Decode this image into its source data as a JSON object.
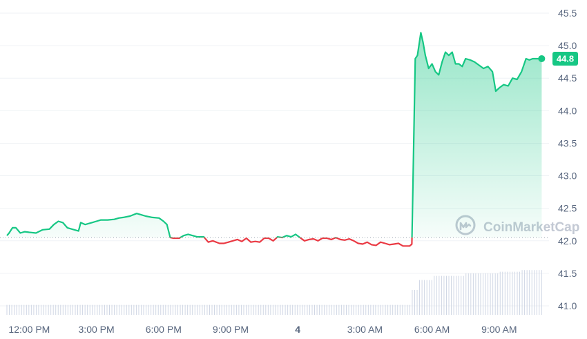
{
  "chart_data": {
    "type": "line",
    "watermark": "CoinMarketCap",
    "current_price_label": "44.8",
    "baseline": 42.05,
    "ylim": [
      40.95,
      45.7
    ],
    "y_ticks": [
      "41.0",
      "41.5",
      "42.0",
      "42.5",
      "43.0",
      "43.5",
      "44.0",
      "44.5",
      "45.0",
      "45.5"
    ],
    "x_ticks": [
      {
        "label": "12:00 PM",
        "t": 3
      },
      {
        "label": "3:00 PM",
        "t": 6
      },
      {
        "label": "6:00 PM",
        "t": 9
      },
      {
        "label": "9:00 PM",
        "t": 12
      },
      {
        "label": "4",
        "t": 15,
        "bold": true
      },
      {
        "label": "3:00 AM",
        "t": 18
      },
      {
        "label": "6:00 AM",
        "t": 21
      },
      {
        "label": "9:00 AM",
        "t": 24
      }
    ],
    "xlim": [
      2.0,
      26.5
    ],
    "colors": {
      "up": "#16c784",
      "down": "#ea3943",
      "grid": "#eff2f5",
      "volume": "#cfd6e4"
    },
    "series": [
      {
        "t": [
          2.0,
          2.1,
          2.25,
          2.4,
          2.6,
          2.8,
          3.0,
          3.3,
          3.6,
          3.9,
          4.1,
          4.3,
          4.5,
          4.7,
          4.9,
          5.2,
          5.3,
          5.5,
          5.8,
          6.0,
          6.2,
          6.5,
          6.8,
          7.0,
          7.2,
          7.5,
          7.8,
          8.0,
          8.2,
          8.5,
          8.8,
          9.0,
          9.15,
          9.3,
          9.45,
          9.7,
          9.9,
          10.1,
          10.3,
          10.5,
          10.8,
          11.0,
          11.2,
          11.5,
          11.7,
          11.9,
          12.1,
          12.3,
          12.5,
          12.7,
          12.9,
          13.1,
          13.3,
          13.5,
          13.7,
          13.9,
          14.1,
          14.3,
          14.5,
          14.7,
          14.9,
          15.1,
          15.3,
          15.5,
          15.7,
          15.9,
          16.1,
          16.3,
          16.5,
          16.7,
          16.9,
          17.1,
          17.3,
          17.5,
          17.7,
          17.9,
          18.1,
          18.3,
          18.5,
          18.7,
          18.9,
          19.1,
          19.3,
          19.5,
          19.7,
          20.0,
          20.1,
          20.25,
          20.35,
          20.5,
          20.6,
          20.7,
          20.85,
          21.0,
          21.15,
          21.3,
          21.45,
          21.6,
          21.75,
          21.9,
          22.05,
          22.2,
          22.35,
          22.5,
          22.7,
          22.9,
          23.1,
          23.3,
          23.5,
          23.7,
          23.85,
          24.0,
          24.2,
          24.4,
          24.6,
          24.8,
          25.0,
          25.2,
          25.35,
          25.5,
          25.7,
          25.9
        ],
        "values": [
          42.08,
          42.12,
          42.2,
          42.2,
          42.12,
          42.14,
          42.13,
          42.12,
          42.17,
          42.18,
          42.25,
          42.3,
          42.28,
          42.2,
          42.18,
          42.15,
          42.28,
          42.25,
          42.28,
          42.3,
          42.32,
          42.32,
          42.33,
          42.35,
          42.36,
          42.38,
          42.42,
          42.4,
          42.38,
          42.36,
          42.35,
          42.3,
          42.25,
          42.05,
          42.04,
          42.04,
          42.08,
          42.1,
          42.08,
          42.06,
          42.06,
          41.98,
          42.0,
          41.96,
          41.96,
          41.98,
          42.0,
          42.02,
          41.99,
          42.04,
          41.98,
          41.99,
          41.98,
          42.04,
          42.04,
          42.0,
          42.06,
          42.05,
          42.08,
          42.06,
          42.1,
          42.05,
          42.0,
          42.02,
          42.03,
          42.0,
          42.04,
          42.04,
          42.02,
          42.05,
          42.02,
          42.01,
          42.03,
          42.0,
          41.96,
          41.95,
          41.98,
          41.94,
          41.93,
          41.98,
          41.96,
          41.94,
          41.95,
          41.96,
          41.92,
          41.92,
          41.95,
          44.8,
          44.85,
          45.2,
          45.05,
          44.85,
          44.65,
          44.72,
          44.6,
          44.55,
          44.75,
          44.9,
          44.85,
          44.9,
          44.72,
          44.72,
          44.68,
          44.8,
          44.78,
          44.75,
          44.7,
          44.65,
          44.68,
          44.6,
          44.3,
          44.35,
          44.4,
          44.38,
          44.5,
          44.48,
          44.6,
          44.8,
          44.78,
          44.8,
          44.8,
          44.8
        ]
      }
    ],
    "volume": {
      "t_start": 2.0,
      "t_end": 25.9,
      "count": 220,
      "levels": [
        {
          "from": 2.0,
          "to": 20.05,
          "height": 0.12
        },
        {
          "from": 20.05,
          "to": 20.4,
          "height": 0.3
        },
        {
          "from": 20.4,
          "to": 21.0,
          "height": 0.42
        },
        {
          "from": 21.0,
          "to": 22.5,
          "height": 0.47
        },
        {
          "from": 22.5,
          "to": 24.0,
          "height": 0.5
        },
        {
          "from": 24.0,
          "to": 25.0,
          "height": 0.52
        },
        {
          "from": 25.0,
          "to": 25.9,
          "height": 0.54
        }
      ]
    }
  }
}
